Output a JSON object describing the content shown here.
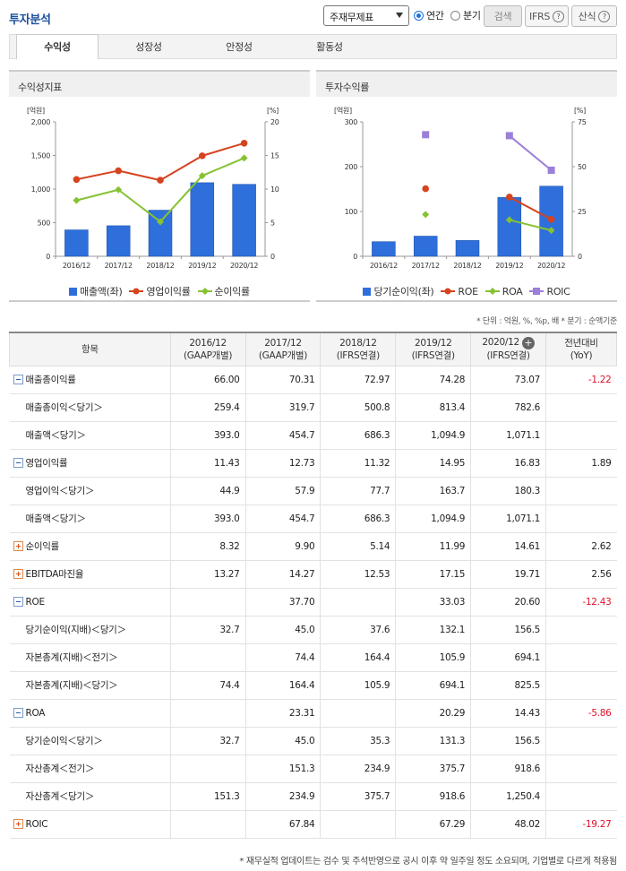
{
  "header": {
    "title": "투자분석",
    "select_value": "주재무제표",
    "radio_annual": "연간",
    "radio_quarter": "분기",
    "search_label": "검색",
    "ifrs_label": "IFRS",
    "formula_label": "산식",
    "help_glyph": "?"
  },
  "tabs": [
    "수익성",
    "성장성",
    "안정성",
    "활동성"
  ],
  "panels": {
    "left_title": "수익성지표",
    "right_title": "투자수익률"
  },
  "colors": {
    "bar": "#2e6fdb",
    "red": "#d6431f",
    "green": "#86c232",
    "purple": "#9b7fd9"
  },
  "chart_data": [
    {
      "type": "bar",
      "title": "수익성지표",
      "categories": [
        "2016/12",
        "2017/12",
        "2018/12",
        "2019/12",
        "2020/12"
      ],
      "y_left_label": "[억원]",
      "y_right_label": "[%]",
      "y_left_ticks": [
        "2,000",
        "1,500",
        "1,000",
        "500",
        "0"
      ],
      "y_right_ticks": [
        "20",
        "15",
        "10",
        "5",
        "0"
      ],
      "ylim_left": [
        0,
        2000
      ],
      "ylim_right": [
        0,
        20
      ],
      "series": [
        {
          "name": "매출액(좌)",
          "kind": "bar",
          "axis": "left",
          "values": [
            393.0,
            454.7,
            686.3,
            1094.9,
            1071.1
          ]
        },
        {
          "name": "영업이익률",
          "kind": "line",
          "axis": "right",
          "values": [
            11.43,
            12.73,
            11.32,
            14.95,
            16.83
          ]
        },
        {
          "name": "순이익률",
          "kind": "line",
          "axis": "right",
          "values": [
            8.32,
            9.9,
            5.14,
            11.99,
            14.61
          ]
        }
      ]
    },
    {
      "type": "bar",
      "title": "투자수익률",
      "categories": [
        "2016/12",
        "2017/12",
        "2018/12",
        "2019/12",
        "2020/12"
      ],
      "y_left_label": "[억원]",
      "y_right_label": "[%]",
      "y_left_ticks": [
        "300",
        "200",
        "100",
        "0"
      ],
      "y_right_ticks": [
        "75",
        "50",
        "25",
        "0"
      ],
      "ylim_left": [
        0,
        300
      ],
      "ylim_right": [
        0,
        75
      ],
      "series": [
        {
          "name": "당기순이익(좌)",
          "kind": "bar",
          "axis": "left",
          "values": [
            32.7,
            45.0,
            35.3,
            131.3,
            156.5
          ]
        },
        {
          "name": "ROE",
          "kind": "line",
          "axis": "right",
          "values": [
            null,
            37.7,
            null,
            33.03,
            20.6
          ]
        },
        {
          "name": "ROA",
          "kind": "line",
          "axis": "right",
          "values": [
            null,
            23.31,
            null,
            20.29,
            14.43
          ]
        },
        {
          "name": "ROIC",
          "kind": "line",
          "axis": "right",
          "values": [
            null,
            67.84,
            null,
            67.29,
            48.02
          ]
        }
      ]
    }
  ],
  "unit_note": "* 단위 : 억원, %, %p, 배   * 분기 : 순액기준",
  "table": {
    "headers": [
      {
        "l1": "항목",
        "l2": ""
      },
      {
        "l1": "2016/12",
        "l2": "(GAAP개별)"
      },
      {
        "l1": "2017/12",
        "l2": "(GAAP개별)"
      },
      {
        "l1": "2018/12",
        "l2": "(IFRS연결)"
      },
      {
        "l1": "2019/12",
        "l2": "(IFRS연결)"
      },
      {
        "l1": "2020/12",
        "l2": "(IFRS연결)"
      },
      {
        "l1": "전년대비",
        "l2": "(YoY)"
      }
    ],
    "rows": [
      {
        "label": "매출총이익률",
        "toggle": "minus",
        "values": [
          "66.00",
          "70.31",
          "72.97",
          "74.28",
          "73.07",
          "-1.22"
        ]
      },
      {
        "label": "매출총이익＜당기＞",
        "sub": true,
        "values": [
          "259.4",
          "319.7",
          "500.8",
          "813.4",
          "782.6",
          ""
        ]
      },
      {
        "label": "매출액＜당기＞",
        "sub": true,
        "values": [
          "393.0",
          "454.7",
          "686.3",
          "1,094.9",
          "1,071.1",
          ""
        ]
      },
      {
        "label": "영업이익률",
        "toggle": "minus",
        "values": [
          "11.43",
          "12.73",
          "11.32",
          "14.95",
          "16.83",
          "1.89"
        ]
      },
      {
        "label": "영업이익＜당기＞",
        "sub": true,
        "values": [
          "44.9",
          "57.9",
          "77.7",
          "163.7",
          "180.3",
          ""
        ]
      },
      {
        "label": "매출액＜당기＞",
        "sub": true,
        "values": [
          "393.0",
          "454.7",
          "686.3",
          "1,094.9",
          "1,071.1",
          ""
        ]
      },
      {
        "label": "순이익률",
        "toggle": "plus",
        "values": [
          "8.32",
          "9.90",
          "5.14",
          "11.99",
          "14.61",
          "2.62"
        ]
      },
      {
        "label": "EBITDA마진율",
        "toggle": "plus",
        "values": [
          "13.27",
          "14.27",
          "12.53",
          "17.15",
          "19.71",
          "2.56"
        ]
      },
      {
        "label": "ROE",
        "toggle": "minus",
        "values": [
          "",
          "37.70",
          "",
          "33.03",
          "20.60",
          "-12.43"
        ]
      },
      {
        "label": "당기순이익(지배)＜당기＞",
        "sub": true,
        "values": [
          "32.7",
          "45.0",
          "37.6",
          "132.1",
          "156.5",
          ""
        ]
      },
      {
        "label": "자본총계(지배)＜전기＞",
        "sub": true,
        "values": [
          "",
          "74.4",
          "164.4",
          "105.9",
          "694.1",
          ""
        ]
      },
      {
        "label": "자본총계(지배)＜당기＞",
        "sub": true,
        "values": [
          "74.4",
          "164.4",
          "105.9",
          "694.1",
          "825.5",
          ""
        ]
      },
      {
        "label": "ROA",
        "toggle": "minus",
        "values": [
          "",
          "23.31",
          "",
          "20.29",
          "14.43",
          "-5.86"
        ]
      },
      {
        "label": "당기순이익＜당기＞",
        "sub": true,
        "values": [
          "32.7",
          "45.0",
          "35.3",
          "131.3",
          "156.5",
          ""
        ]
      },
      {
        "label": "자산총계＜전기＞",
        "sub": true,
        "values": [
          "",
          "151.3",
          "234.9",
          "375.7",
          "918.6",
          ""
        ]
      },
      {
        "label": "자산총계＜당기＞",
        "sub": true,
        "values": [
          "151.3",
          "234.9",
          "375.7",
          "918.6",
          "1,250.4",
          ""
        ]
      },
      {
        "label": "ROIC",
        "toggle": "plus",
        "values": [
          "",
          "67.84",
          "",
          "67.29",
          "48.02",
          "-19.27"
        ]
      }
    ]
  },
  "footnote": "* 재무실적 업데이트는 검수 및 주석반영으로 공시 이후 약 일주일 정도 소요되며, 기업별로 다르게 적용됨"
}
